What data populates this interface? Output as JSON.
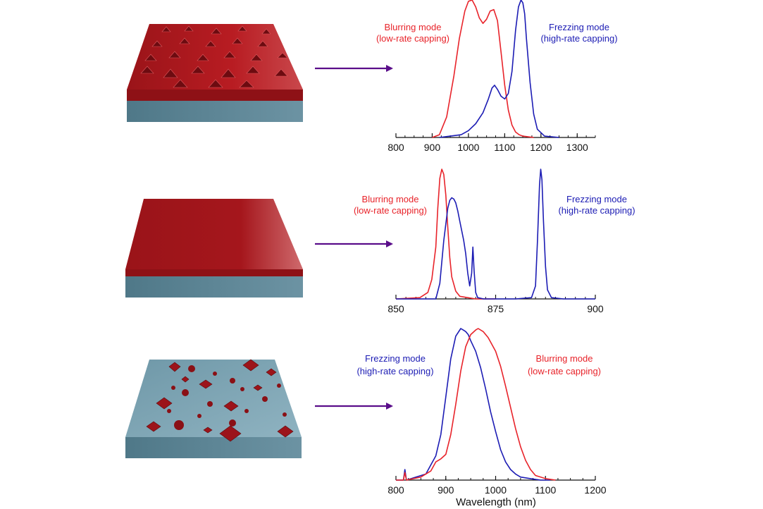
{
  "colors": {
    "blurring": "#e8232a",
    "freezing": "#1c1cb4",
    "arrow": "#5a0d8a",
    "red_top": "#b81c22",
    "red_side": "#8e1116",
    "blue_slab": "#5d8595",
    "blue_top": "#7ea6b6"
  },
  "chart_data": [
    {
      "type": "line",
      "xlim": [
        800,
        1350
      ],
      "ticks": [
        "800",
        "900",
        "1000",
        "1100",
        "1200",
        "1300"
      ],
      "annotations": [
        {
          "series": "blurring",
          "line1": "Blurring mode",
          "line2": "(low-rate capping)"
        },
        {
          "series": "freezing",
          "line1": "Frezzing mode",
          "line2": "(high-rate capping)"
        }
      ],
      "series": [
        {
          "key": "blurring",
          "color": "#e8232a",
          "x": [
            900,
            920,
            940,
            960,
            975,
            990,
            1000,
            1010,
            1020,
            1030,
            1040,
            1050,
            1060,
            1070,
            1080,
            1090,
            1100,
            1110,
            1120,
            1130,
            1140,
            1150,
            1180
          ],
          "y": [
            0.0,
            0.02,
            0.15,
            0.45,
            0.72,
            0.92,
            0.99,
            1.0,
            0.95,
            0.87,
            0.83,
            0.86,
            0.92,
            0.93,
            0.85,
            0.62,
            0.38,
            0.2,
            0.09,
            0.04,
            0.02,
            0.01,
            0.0
          ]
        },
        {
          "key": "freezing",
          "color": "#1c1cb4",
          "x": [
            920,
            950,
            980,
            1000,
            1020,
            1040,
            1055,
            1065,
            1072,
            1080,
            1090,
            1100,
            1110,
            1120,
            1130,
            1138,
            1145,
            1150,
            1155,
            1160,
            1170,
            1180,
            1190,
            1210,
            1250
          ],
          "y": [
            0.0,
            0.01,
            0.02,
            0.05,
            0.1,
            0.18,
            0.28,
            0.36,
            0.38,
            0.35,
            0.3,
            0.28,
            0.32,
            0.48,
            0.78,
            0.95,
            1.0,
            0.98,
            0.9,
            0.72,
            0.4,
            0.17,
            0.06,
            0.01,
            0.0
          ]
        }
      ]
    },
    {
      "type": "line",
      "xlim": [
        850,
        900
      ],
      "ticks": [
        "850",
        "875",
        "900"
      ],
      "annotations": [
        {
          "series": "blurring",
          "line1": "Blurring mode",
          "line2": "(low-rate capping)"
        },
        {
          "series": "freezing",
          "line1": "Frezzing mode",
          "line2": "(high-rate capping)"
        }
      ],
      "series": [
        {
          "key": "blurring",
          "color": "#e8232a",
          "x": [
            850,
            856,
            858,
            859,
            860,
            860.5,
            861,
            861.5,
            862,
            862.5,
            863,
            863.5,
            864,
            865,
            866,
            868,
            870,
            875
          ],
          "y": [
            0.0,
            0.01,
            0.05,
            0.15,
            0.4,
            0.7,
            0.93,
            1.0,
            0.96,
            0.8,
            0.55,
            0.32,
            0.17,
            0.06,
            0.02,
            0.01,
            0.0,
            0.0
          ]
        },
        {
          "key": "freezing",
          "color": "#1c1cb4",
          "x": [
            850,
            860,
            861,
            862,
            863,
            863.5,
            864,
            864.5,
            865,
            865.5,
            866,
            867,
            867.5,
            868,
            868.5,
            869,
            869.3,
            869.6,
            870,
            870.5,
            872,
            880,
            884,
            885,
            885.5,
            886,
            886.3,
            886.6,
            887,
            887.5,
            888,
            889,
            892,
            900
          ],
          "y": [
            0.0,
            0.0,
            0.12,
            0.45,
            0.7,
            0.76,
            0.78,
            0.77,
            0.74,
            0.68,
            0.6,
            0.45,
            0.35,
            0.2,
            0.1,
            0.2,
            0.4,
            0.22,
            0.05,
            0.01,
            0.0,
            0.0,
            0.01,
            0.1,
            0.45,
            0.88,
            1.0,
            0.92,
            0.6,
            0.25,
            0.07,
            0.01,
            0.0,
            0.0
          ]
        }
      ]
    },
    {
      "type": "line",
      "xlim": [
        800,
        1200
      ],
      "ticks": [
        "800",
        "900",
        "1000",
        "1100",
        "1200"
      ],
      "xlabel": "Wavelength (nm)",
      "annotations": [
        {
          "series": "freezing",
          "line1": "Frezzing mode",
          "line2": "(high-rate capping)"
        },
        {
          "series": "blurring",
          "line1": "Blurring mode",
          "line2": "(low-rate capping)"
        }
      ],
      "series": [
        {
          "key": "freezing",
          "color": "#1c1cb4",
          "x": [
            800,
            815,
            818,
            821,
            840,
            860,
            870,
            880,
            890,
            900,
            910,
            920,
            930,
            935,
            940,
            945,
            950,
            960,
            970,
            980,
            990,
            1000,
            1010,
            1020,
            1030,
            1040,
            1050,
            1070,
            1090,
            1110
          ],
          "y": [
            0.0,
            0.0,
            0.07,
            0.0,
            0.02,
            0.04,
            0.1,
            0.16,
            0.3,
            0.55,
            0.8,
            0.95,
            1.0,
            0.99,
            0.98,
            0.96,
            0.92,
            0.85,
            0.74,
            0.6,
            0.45,
            0.32,
            0.2,
            0.12,
            0.07,
            0.04,
            0.02,
            0.01,
            0.0,
            0.0
          ]
        },
        {
          "key": "blurring",
          "color": "#e8232a",
          "x": [
            800,
            815,
            818,
            821,
            850,
            870,
            880,
            890,
            900,
            910,
            920,
            930,
            940,
            950,
            960,
            965,
            975,
            985,
            1000,
            1010,
            1020,
            1030,
            1040,
            1050,
            1060,
            1070,
            1080,
            1100,
            1120
          ],
          "y": [
            0.0,
            0.0,
            0.05,
            0.0,
            0.02,
            0.06,
            0.12,
            0.14,
            0.17,
            0.3,
            0.5,
            0.72,
            0.88,
            0.96,
            0.99,
            1.0,
            0.98,
            0.94,
            0.85,
            0.75,
            0.62,
            0.48,
            0.34,
            0.22,
            0.13,
            0.07,
            0.03,
            0.01,
            0.0
          ]
        }
      ]
    }
  ]
}
